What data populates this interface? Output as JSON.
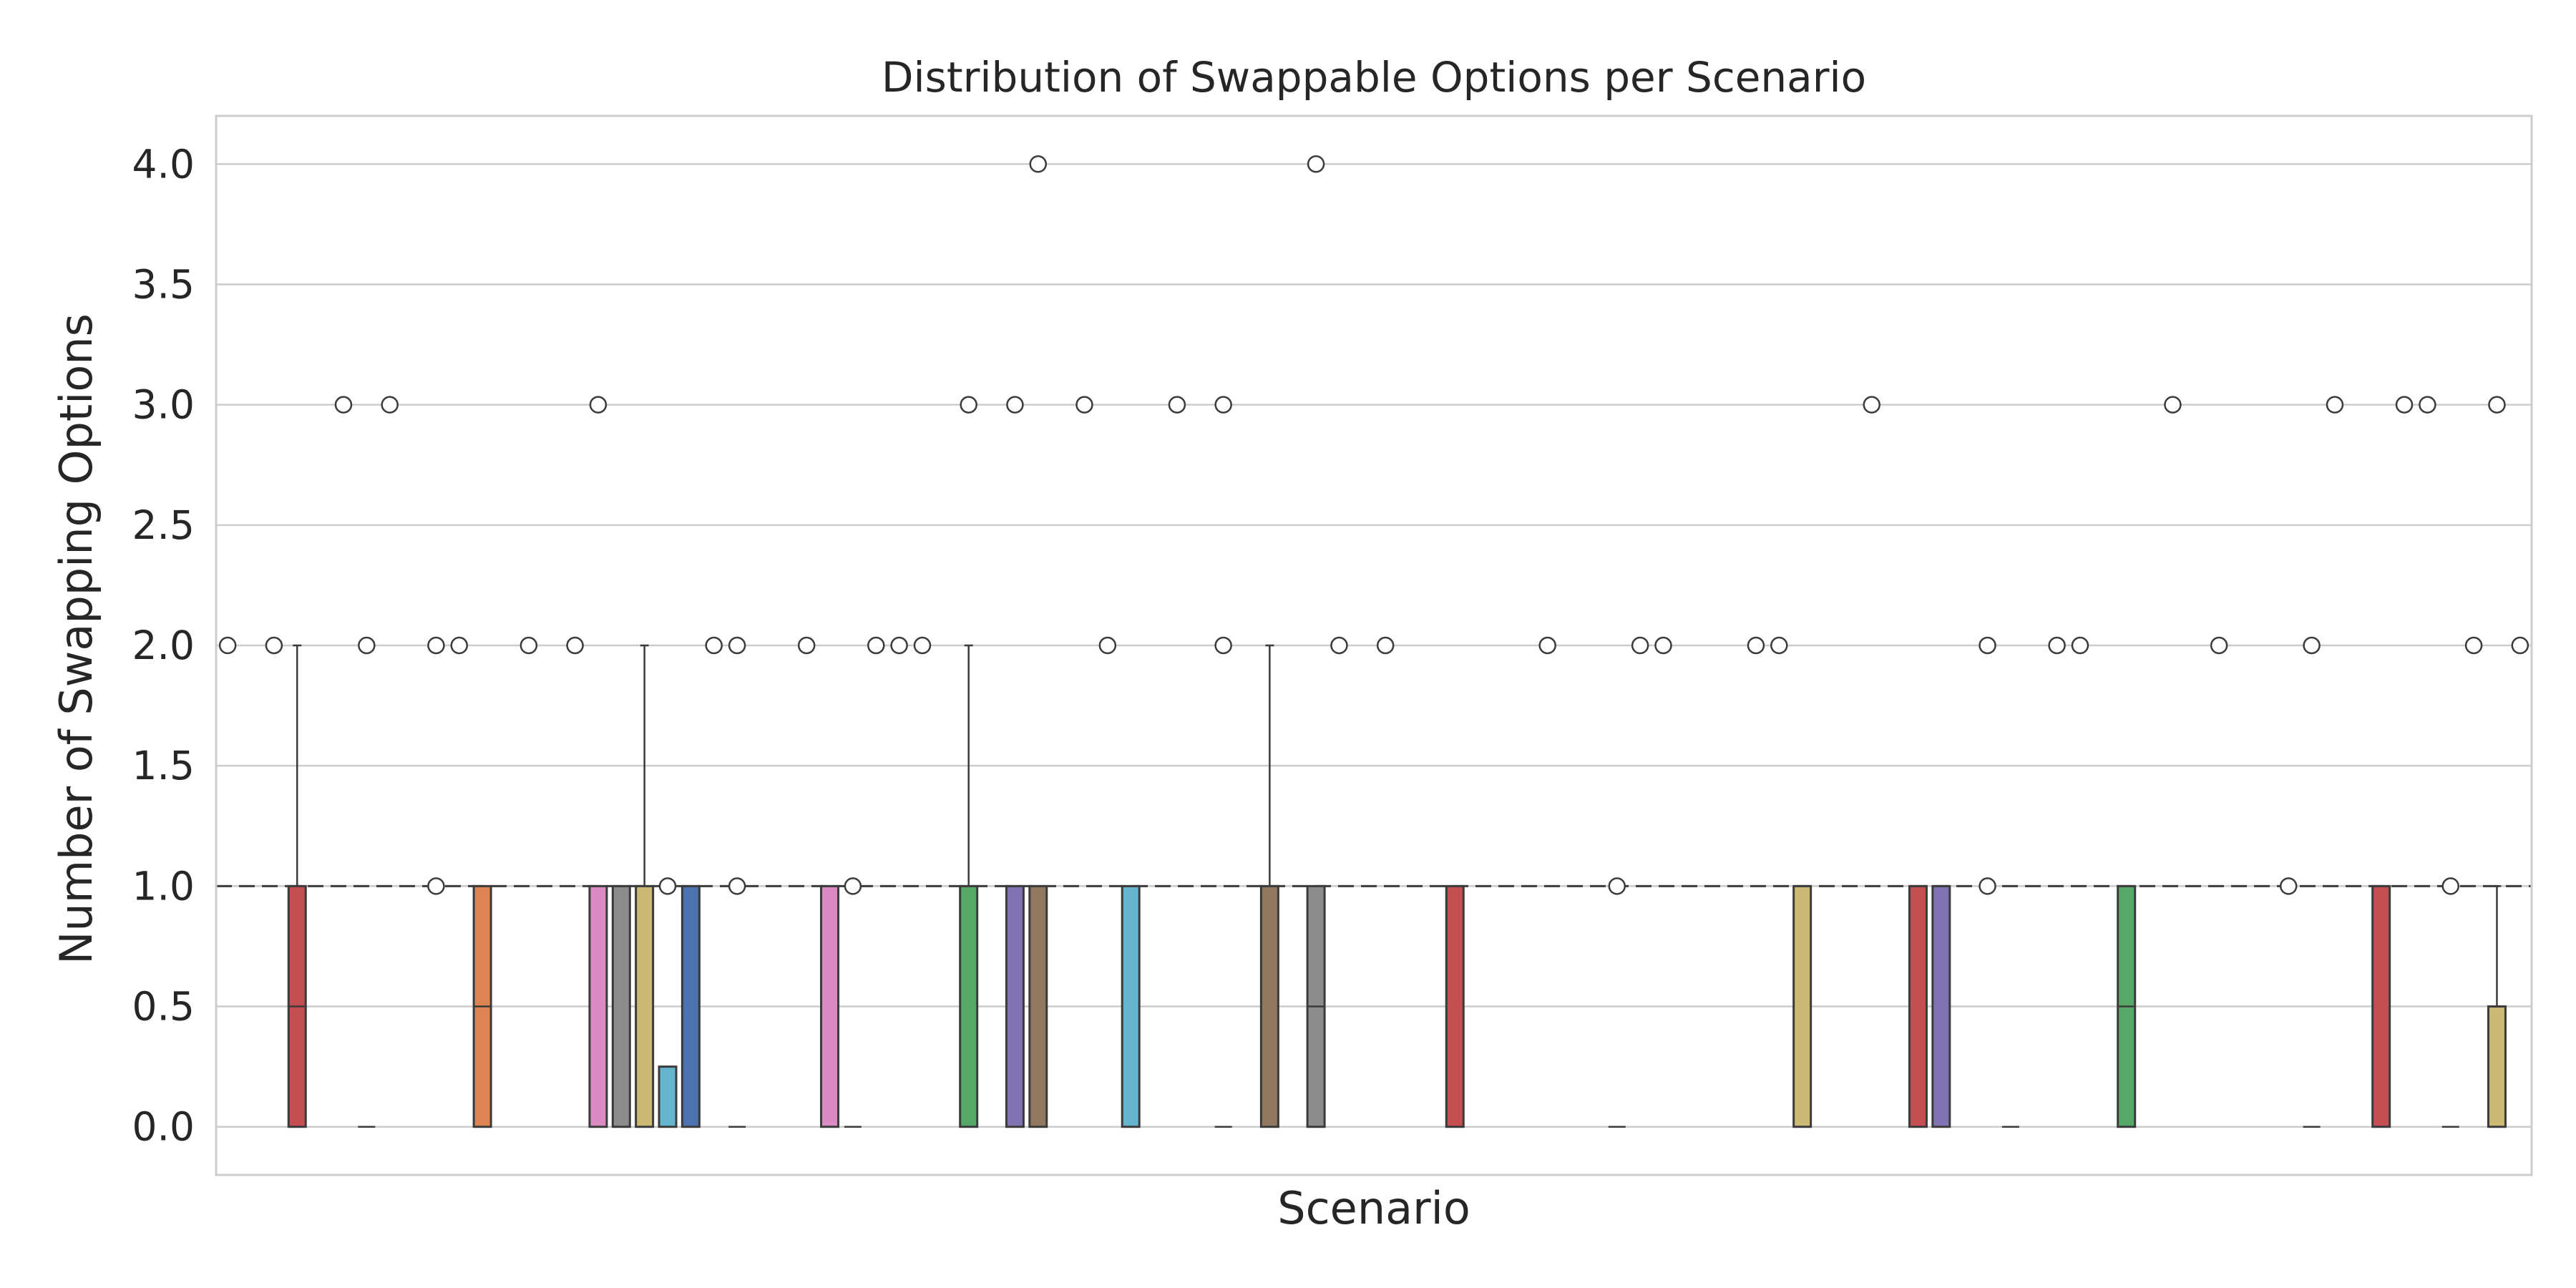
{
  "chart_data": {
    "type": "box",
    "title": "Distribution of Swappable Options per Scenario",
    "xlabel": "Scenario",
    "ylabel": "Number of Swapping Options",
    "ylim": [
      -0.2,
      4.2
    ],
    "yticks": [
      "0.0",
      "0.5",
      "1.0",
      "1.5",
      "2.0",
      "2.5",
      "3.0",
      "3.5",
      "4.0"
    ],
    "grid": true,
    "reference_line": {
      "y": 1.0,
      "style": "dashed"
    },
    "num_scenarios": 100,
    "boxes": [
      {
        "index": 3,
        "q1": 0,
        "median": 0.5,
        "q3": 1,
        "whisker_low": 0,
        "whisker_high": 2,
        "color": "#c44e52"
      },
      {
        "index": 11,
        "q1": 0,
        "median": 0.5,
        "q3": 1,
        "whisker_low": 0,
        "whisker_high": 1,
        "color": "#dd8452"
      },
      {
        "index": 16,
        "q1": 0,
        "median": 1,
        "q3": 1,
        "whisker_low": 0,
        "whisker_high": 1,
        "color": "#da8bc3"
      },
      {
        "index": 17,
        "q1": 0,
        "median": 1,
        "q3": 1,
        "whisker_low": 0,
        "whisker_high": 1,
        "color": "#8c8c8c"
      },
      {
        "index": 18,
        "q1": 0,
        "median": 1,
        "q3": 1,
        "whisker_low": 0,
        "whisker_high": 2,
        "color": "#ccb974"
      },
      {
        "index": 19,
        "q1": 0,
        "median": 0,
        "q3": 0.25,
        "whisker_low": 0,
        "whisker_high": 0.25,
        "color": "#64b5cd"
      },
      {
        "index": 20,
        "q1": 0,
        "median": 1,
        "q3": 1,
        "whisker_low": 0,
        "whisker_high": 1,
        "color": "#4c72b0"
      },
      {
        "index": 26,
        "q1": 0,
        "median": 1,
        "q3": 1,
        "whisker_low": 0,
        "whisker_high": 1,
        "color": "#da8bc3"
      },
      {
        "index": 32,
        "q1": 0,
        "median": 1,
        "q3": 1,
        "whisker_low": 0,
        "whisker_high": 2,
        "color": "#55a868"
      },
      {
        "index": 34,
        "q1": 0,
        "median": 1,
        "q3": 1,
        "whisker_low": 0,
        "whisker_high": 1,
        "color": "#8172b3"
      },
      {
        "index": 35,
        "q1": 0,
        "median": 1,
        "q3": 1,
        "whisker_low": 0,
        "whisker_high": 1,
        "color": "#937860"
      },
      {
        "index": 39,
        "q1": 0,
        "median": 1,
        "q3": 1,
        "whisker_low": 0,
        "whisker_high": 1,
        "color": "#64b5cd"
      },
      {
        "index": 45,
        "q1": 0,
        "median": 1,
        "q3": 1,
        "whisker_low": 0,
        "whisker_high": 2,
        "color": "#937860"
      },
      {
        "index": 47,
        "q1": 0,
        "median": 0.5,
        "q3": 1,
        "whisker_low": 0,
        "whisker_high": 1,
        "color": "#8c8c8c"
      },
      {
        "index": 53,
        "q1": 0,
        "median": 1,
        "q3": 1,
        "whisker_low": 0,
        "whisker_high": 1,
        "color": "#c44e52"
      },
      {
        "index": 68,
        "q1": 0,
        "median": 1,
        "q3": 1,
        "whisker_low": 0,
        "whisker_high": 1,
        "color": "#ccb974"
      },
      {
        "index": 73,
        "q1": 0,
        "median": 1,
        "q3": 1,
        "whisker_low": 0,
        "whisker_high": 1,
        "color": "#c44e52"
      },
      {
        "index": 74,
        "q1": 0,
        "median": 1,
        "q3": 1,
        "whisker_low": 0,
        "whisker_high": 1,
        "color": "#8172b3"
      },
      {
        "index": 82,
        "q1": 0,
        "median": 0.5,
        "q3": 1,
        "whisker_low": 0,
        "whisker_high": 1,
        "color": "#55a868"
      },
      {
        "index": 93,
        "q1": 0,
        "median": 1,
        "q3": 1,
        "whisker_low": 0,
        "whisker_high": 1,
        "color": "#c44e52"
      },
      {
        "index": 98,
        "q1": 0,
        "median": 0,
        "q3": 0.5,
        "whisker_low": 0,
        "whisker_high": 1,
        "color": "#ccb974"
      }
    ],
    "flat_medians": [
      {
        "index": 6,
        "value": 0
      },
      {
        "index": 22,
        "value": 0
      },
      {
        "index": 27,
        "value": 0
      },
      {
        "index": 43,
        "value": 0
      },
      {
        "index": 60,
        "value": 0
      },
      {
        "index": 77,
        "value": 0
      },
      {
        "index": 90,
        "value": 0
      },
      {
        "index": 96,
        "value": 0
      }
    ],
    "outliers": [
      {
        "index": 0,
        "y": 2
      },
      {
        "index": 2,
        "y": 2
      },
      {
        "index": 5,
        "y": 3
      },
      {
        "index": 6,
        "y": 2
      },
      {
        "index": 7,
        "y": 3
      },
      {
        "index": 9,
        "y": 2
      },
      {
        "index": 9,
        "y": 1
      },
      {
        "index": 10,
        "y": 2
      },
      {
        "index": 13,
        "y": 2
      },
      {
        "index": 15,
        "y": 2
      },
      {
        "index": 16,
        "y": 3
      },
      {
        "index": 19,
        "y": 1
      },
      {
        "index": 21,
        "y": 2
      },
      {
        "index": 22,
        "y": 2
      },
      {
        "index": 22,
        "y": 1
      },
      {
        "index": 25,
        "y": 2
      },
      {
        "index": 27,
        "y": 1
      },
      {
        "index": 28,
        "y": 2
      },
      {
        "index": 29,
        "y": 2
      },
      {
        "index": 30,
        "y": 2
      },
      {
        "index": 32,
        "y": 3
      },
      {
        "index": 34,
        "y": 3
      },
      {
        "index": 35,
        "y": 4
      },
      {
        "index": 37,
        "y": 3
      },
      {
        "index": 38,
        "y": 2
      },
      {
        "index": 41,
        "y": 3
      },
      {
        "index": 43,
        "y": 3
      },
      {
        "index": 43,
        "y": 2
      },
      {
        "index": 47,
        "y": 4
      },
      {
        "index": 48,
        "y": 2
      },
      {
        "index": 50,
        "y": 2
      },
      {
        "index": 57,
        "y": 2
      },
      {
        "index": 60,
        "y": 1
      },
      {
        "index": 61,
        "y": 2
      },
      {
        "index": 62,
        "y": 2
      },
      {
        "index": 66,
        "y": 2
      },
      {
        "index": 67,
        "y": 2
      },
      {
        "index": 71,
        "y": 3
      },
      {
        "index": 76,
        "y": 2
      },
      {
        "index": 76,
        "y": 1
      },
      {
        "index": 79,
        "y": 2
      },
      {
        "index": 80,
        "y": 2
      },
      {
        "index": 84,
        "y": 3
      },
      {
        "index": 86,
        "y": 2
      },
      {
        "index": 89,
        "y": 1
      },
      {
        "index": 90,
        "y": 2
      },
      {
        "index": 91,
        "y": 3
      },
      {
        "index": 94,
        "y": 3
      },
      {
        "index": 95,
        "y": 3
      },
      {
        "index": 96,
        "y": 1
      },
      {
        "index": 97,
        "y": 2
      },
      {
        "index": 98,
        "y": 3
      },
      {
        "index": 99,
        "y": 2
      }
    ]
  }
}
